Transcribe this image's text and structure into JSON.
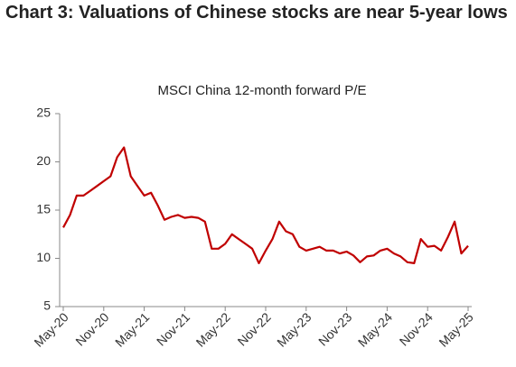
{
  "chart_data": {
    "type": "line",
    "title": "Chart 3: Valuations of Chinese stocks are near 5-year lows",
    "subtitle": "MSCI China 12-month forward P/E",
    "categories": [
      "May-20",
      null,
      null,
      null,
      null,
      null,
      "Nov-20",
      null,
      null,
      null,
      null,
      null,
      "May-21",
      null,
      null,
      null,
      null,
      null,
      "Nov-21",
      null,
      null,
      null,
      null,
      null,
      "May-22",
      null,
      null,
      null,
      null,
      null,
      "Nov-22",
      null,
      null,
      null,
      null,
      null,
      "May-23",
      null,
      null,
      null,
      null,
      null,
      "Nov-23",
      null,
      null,
      null,
      null,
      null,
      "May-24",
      null,
      null,
      null,
      null,
      null,
      "Nov-24",
      null,
      null,
      null,
      null,
      null,
      "May-25"
    ],
    "values": [
      13.2,
      14.5,
      16.5,
      16.5,
      17,
      17.5,
      18,
      18.5,
      20.5,
      21.5,
      18.5,
      17.5,
      16.5,
      16.8,
      15.5,
      14,
      14.3,
      14.5,
      14.2,
      14.3,
      14.2,
      13.8,
      11,
      11,
      11.5,
      12.5,
      12,
      11.5,
      11,
      9.5,
      10.8,
      12,
      13.8,
      12.8,
      12.5,
      11.2,
      10.8,
      11,
      11.2,
      10.8,
      10.8,
      10.5,
      10.7,
      10.3,
      9.6,
      10.2,
      10.3,
      10.8,
      11,
      10.5,
      10.2,
      9.6,
      9.5,
      12,
      11.2,
      11.3,
      10.8,
      12.2,
      13.8,
      10.5,
      11.3
    ],
    "color": "#c00000",
    "ylim": [
      5,
      25
    ],
    "yticks": [
      5,
      10,
      15,
      20,
      25
    ],
    "grid": false
  }
}
